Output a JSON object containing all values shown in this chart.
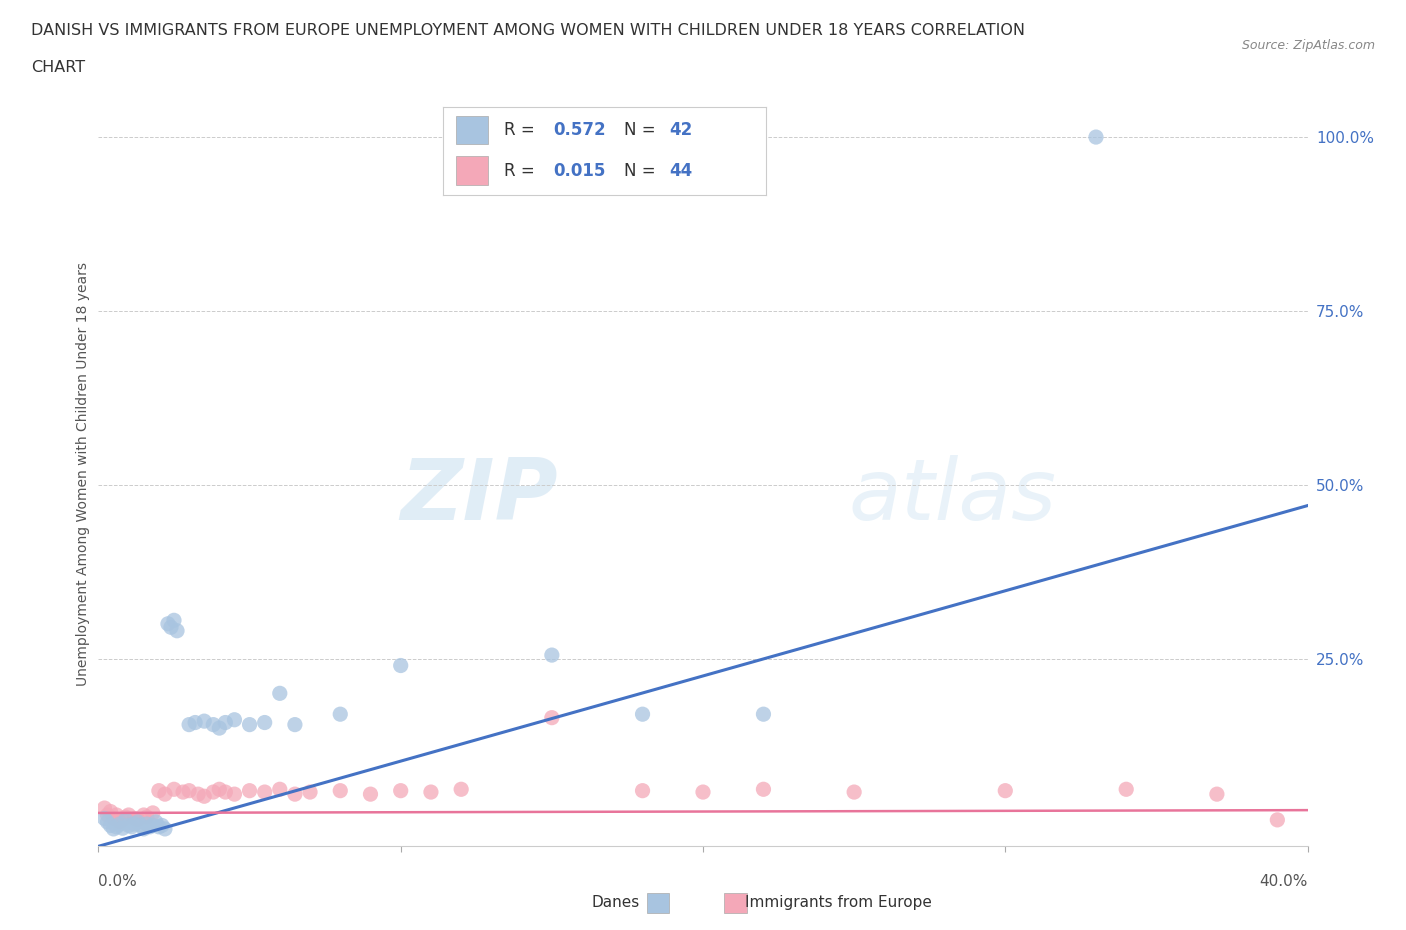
{
  "title_line1": "DANISH VS IMMIGRANTS FROM EUROPE UNEMPLOYMENT AMONG WOMEN WITH CHILDREN UNDER 18 YEARS CORRELATION",
  "title_line2": "CHART",
  "source": "Source: ZipAtlas.com",
  "ylabel": "Unemployment Among Women with Children Under 18 years",
  "xlim": [
    0.0,
    0.4
  ],
  "ylim": [
    -0.02,
    1.05
  ],
  "yticks": [
    0.0,
    0.25,
    0.5,
    0.75,
    1.0
  ],
  "ytick_labels": [
    "",
    "25.0%",
    "50.0%",
    "75.0%",
    "100.0%"
  ],
  "danes_color": "#a8c4e0",
  "immigrants_color": "#f4a8b8",
  "danes_line_color": "#4472c4",
  "immigrants_line_color": "#e8749a",
  "danes_R": 0.572,
  "danes_N": 42,
  "immigrants_R": 0.015,
  "immigrants_N": 44,
  "watermark": "ZIPatlas",
  "danes_x": [
    0.002,
    0.003,
    0.004,
    0.005,
    0.006,
    0.007,
    0.008,
    0.009,
    0.01,
    0.011,
    0.012,
    0.013,
    0.014,
    0.015,
    0.016,
    0.017,
    0.018,
    0.019,
    0.02,
    0.021,
    0.022,
    0.023,
    0.024,
    0.025,
    0.026,
    0.03,
    0.032,
    0.035,
    0.038,
    0.04,
    0.042,
    0.045,
    0.05,
    0.055,
    0.06,
    0.065,
    0.08,
    0.1,
    0.15,
    0.18,
    0.22,
    0.33
  ],
  "danes_y": [
    0.02,
    0.015,
    0.01,
    0.005,
    0.008,
    0.012,
    0.006,
    0.018,
    0.01,
    0.008,
    0.012,
    0.015,
    0.01,
    0.005,
    0.012,
    0.008,
    0.01,
    0.015,
    0.008,
    0.01,
    0.005,
    0.3,
    0.295,
    0.305,
    0.29,
    0.155,
    0.158,
    0.16,
    0.155,
    0.15,
    0.158,
    0.162,
    0.155,
    0.158,
    0.2,
    0.155,
    0.17,
    0.24,
    0.255,
    0.17,
    0.17,
    1.0
  ],
  "immigrants_x": [
    0.002,
    0.003,
    0.004,
    0.005,
    0.006,
    0.007,
    0.008,
    0.009,
    0.01,
    0.012,
    0.013,
    0.015,
    0.016,
    0.018,
    0.02,
    0.022,
    0.025,
    0.028,
    0.03,
    0.033,
    0.035,
    0.038,
    0.04,
    0.042,
    0.045,
    0.05,
    0.055,
    0.06,
    0.065,
    0.07,
    0.08,
    0.09,
    0.1,
    0.11,
    0.12,
    0.15,
    0.18,
    0.2,
    0.22,
    0.25,
    0.3,
    0.34,
    0.37,
    0.39
  ],
  "immigrants_y": [
    0.035,
    0.025,
    0.03,
    0.02,
    0.025,
    0.015,
    0.018,
    0.022,
    0.025,
    0.02,
    0.018,
    0.025,
    0.022,
    0.028,
    0.06,
    0.055,
    0.062,
    0.058,
    0.06,
    0.055,
    0.052,
    0.058,
    0.062,
    0.058,
    0.055,
    0.06,
    0.058,
    0.062,
    0.055,
    0.058,
    0.06,
    0.055,
    0.06,
    0.058,
    0.062,
    0.165,
    0.06,
    0.058,
    0.062,
    0.058,
    0.06,
    0.062,
    0.055,
    0.018
  ],
  "blue_line_x": [
    0.0,
    0.4
  ],
  "blue_line_y": [
    -0.02,
    0.47
  ],
  "pink_line_x": [
    0.0,
    0.4
  ],
  "pink_line_y": [
    0.028,
    0.032
  ]
}
